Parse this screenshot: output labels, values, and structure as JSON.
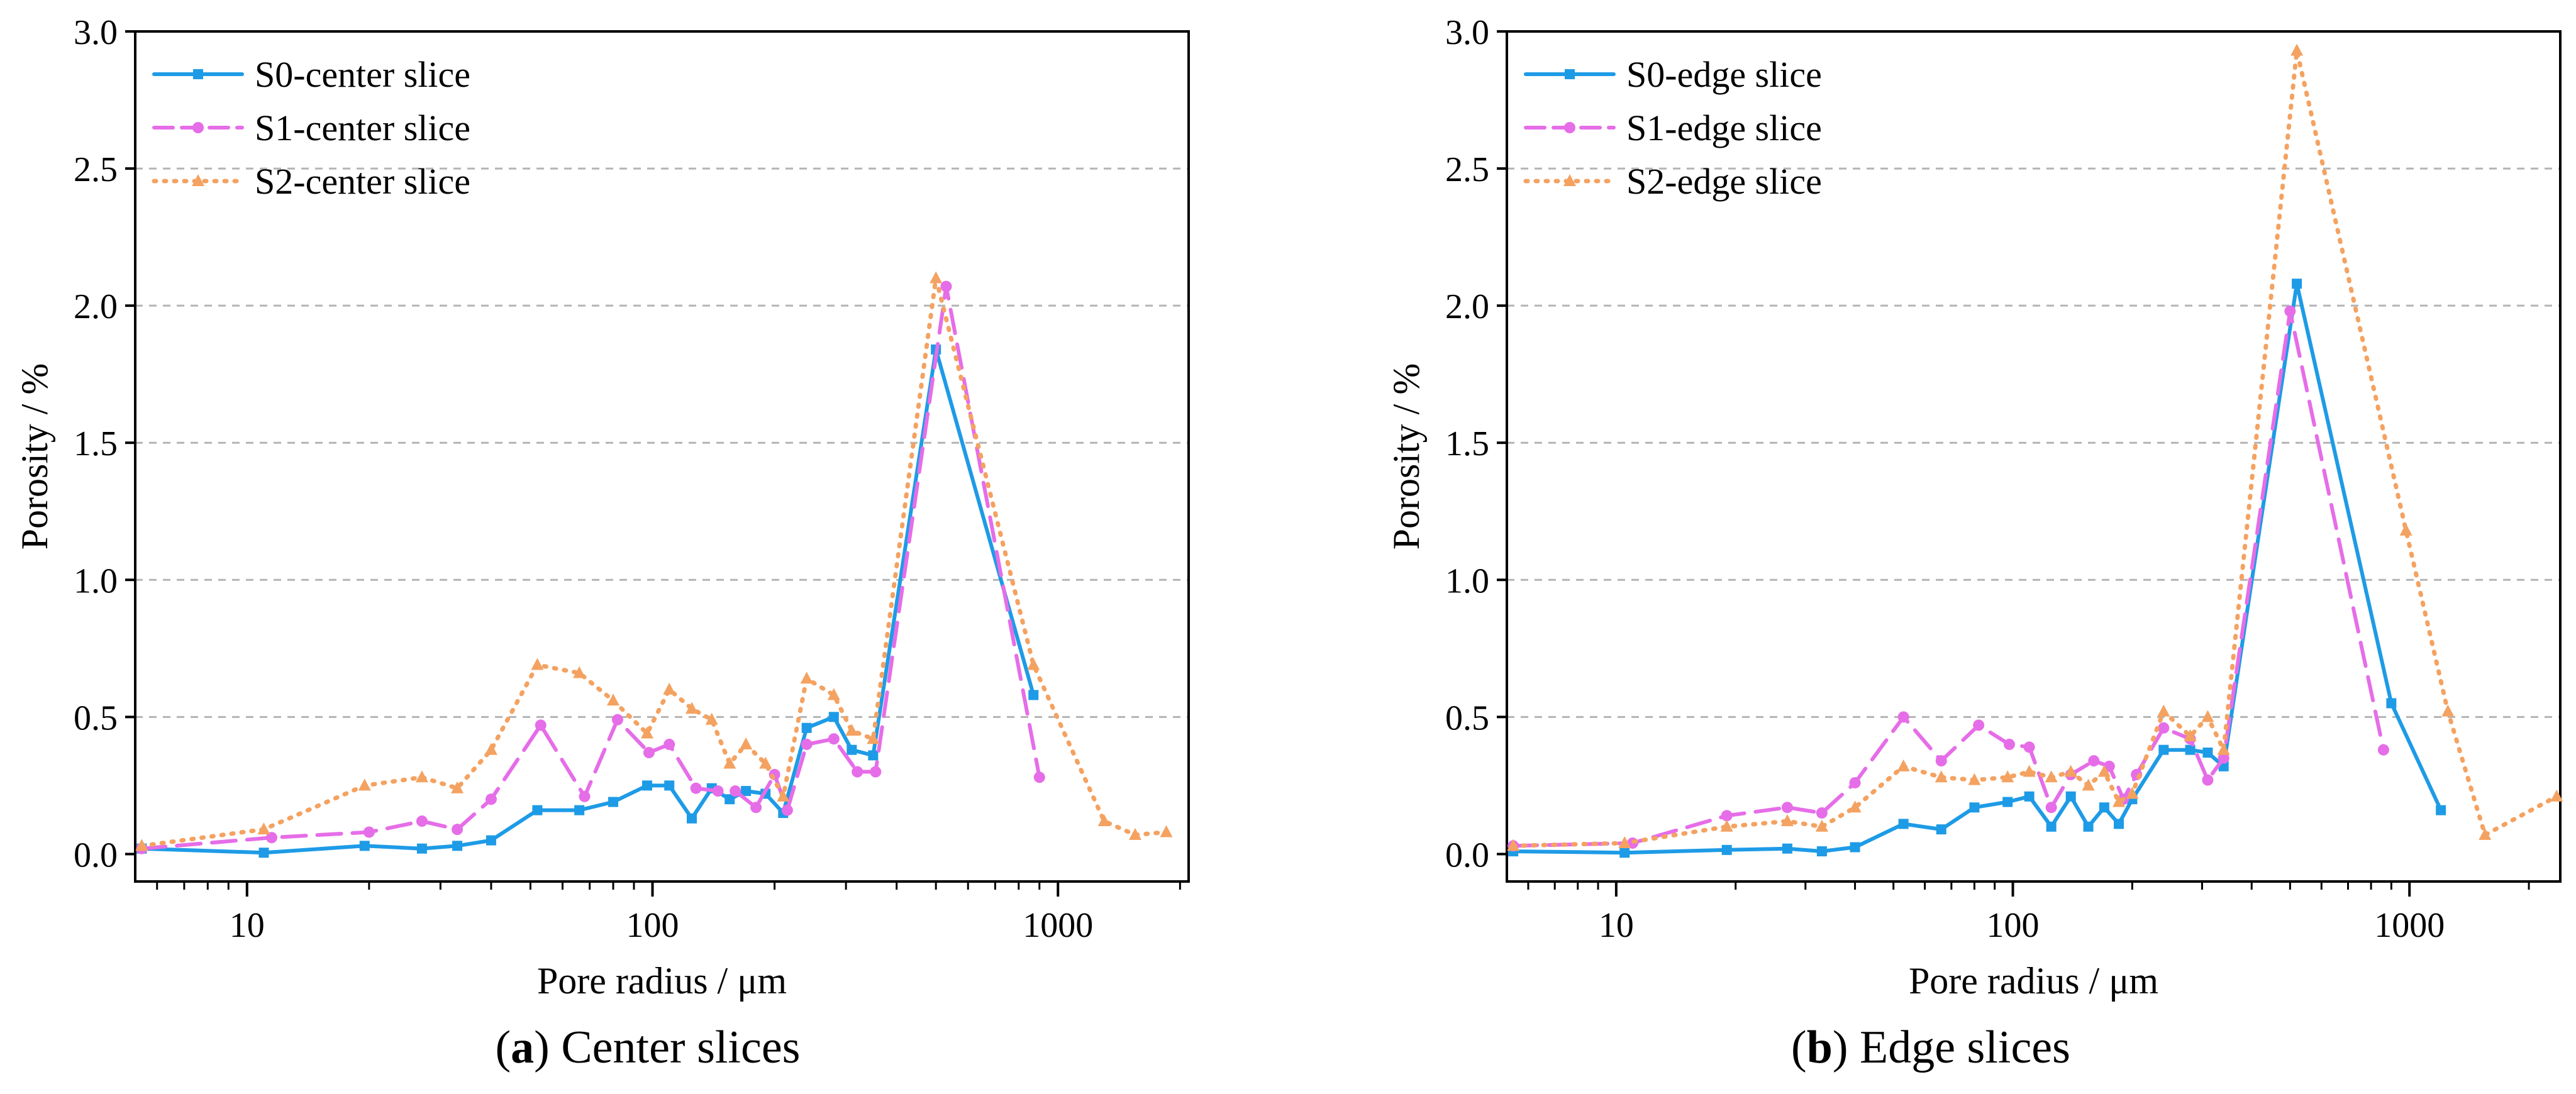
{
  "colors": {
    "s0": "#1e9be6",
    "s1": "#e66de8",
    "s2": "#f4a261",
    "grid": "#b4b4b4",
    "axis": "#000000"
  },
  "chart_data": [
    {
      "type": "line",
      "panel_label": "a",
      "caption": "Center slices",
      "xlabel": "Pore radius / μm",
      "ylabel": "Porosity / %",
      "xscale": "log",
      "xlim": [
        5.3,
        2100
      ],
      "ylim": [
        -0.1,
        3.0
      ],
      "xticks": [
        10,
        100,
        1000
      ],
      "xtick_labels": [
        "10",
        "100",
        "1000"
      ],
      "yticks": [
        0.0,
        0.5,
        1.0,
        1.5,
        2.0,
        2.5,
        3.0
      ],
      "ytick_labels": [
        "0.0",
        "0.5",
        "1.0",
        "1.5",
        "2.0",
        "2.5",
        "3.0"
      ],
      "grid": "horizontal dashed",
      "legend_position": "top-left",
      "series": [
        {
          "name": "S0-center slice",
          "style": "solid",
          "marker": "square",
          "color": "#1e9be6",
          "x": [
            5.5,
            11,
            19.5,
            27,
            33,
            40,
            52,
            66,
            80,
            97,
            110,
            125,
            140,
            155,
            170,
            190,
            210,
            240,
            280,
            310,
            350,
            500,
            870
          ],
          "y": [
            0.02,
            0.005,
            0.03,
            0.02,
            0.03,
            0.05,
            0.16,
            0.16,
            0.19,
            0.25,
            0.25,
            0.13,
            0.24,
            0.2,
            0.23,
            0.22,
            0.15,
            0.46,
            0.5,
            0.38,
            0.36,
            1.84,
            0.58
          ]
        },
        {
          "name": "S1-center slice",
          "style": "dashed",
          "marker": "circle",
          "color": "#e66de8",
          "x": [
            5.5,
            11.5,
            20,
            27,
            33,
            40,
            53,
            68,
            82,
            98,
            110,
            128,
            145,
            160,
            180,
            200,
            215,
            240,
            280,
            320,
            355,
            530,
            900
          ],
          "y": [
            0.02,
            0.06,
            0.08,
            0.12,
            0.09,
            0.2,
            0.47,
            0.21,
            0.49,
            0.37,
            0.4,
            0.24,
            0.23,
            0.23,
            0.17,
            0.29,
            0.16,
            0.4,
            0.42,
            0.3,
            0.3,
            2.07,
            0.28
          ]
        },
        {
          "name": "S2-center slice",
          "style": "dotted",
          "marker": "triangle",
          "color": "#f4a261",
          "x": [
            5.5,
            11,
            19.5,
            27,
            33,
            40,
            52,
            66,
            80,
            97,
            110,
            125,
            140,
            155,
            170,
            190,
            210,
            240,
            280,
            310,
            350,
            500,
            870,
            1300,
            1550,
            1850
          ],
          "y": [
            0.03,
            0.09,
            0.25,
            0.28,
            0.24,
            0.38,
            0.69,
            0.66,
            0.56,
            0.44,
            0.6,
            0.53,
            0.49,
            0.33,
            0.4,
            0.33,
            0.21,
            0.64,
            0.58,
            0.45,
            0.42,
            2.1,
            0.69,
            0.12,
            0.07,
            0.08
          ]
        }
      ]
    },
    {
      "type": "line",
      "panel_label": "b",
      "caption": "Edge slices",
      "xlabel": "Pore radius / μm",
      "ylabel": "Porosity / %",
      "xscale": "log",
      "xlim": [
        5.3,
        2400
      ],
      "ylim": [
        -0.1,
        3.0
      ],
      "xticks": [
        10,
        100,
        1000
      ],
      "xtick_labels": [
        "10",
        "100",
        "1000"
      ],
      "yticks": [
        0.0,
        0.5,
        1.0,
        1.5,
        2.0,
        2.5,
        3.0
      ],
      "ytick_labels": [
        "0.0",
        "0.5",
        "1.0",
        "1.5",
        "2.0",
        "2.5",
        "3.0"
      ],
      "grid": "horizontal dashed",
      "legend_position": "top-left",
      "series": [
        {
          "name": "S0-edge slice",
          "style": "solid",
          "marker": "square",
          "color": "#1e9be6",
          "x": [
            5.5,
            10.5,
            19,
            27,
            33,
            40,
            53,
            66,
            80,
            97,
            110,
            125,
            140,
            155,
            170,
            185,
            200,
            240,
            280,
            310,
            340,
            520,
            900,
            1200
          ],
          "y": [
            0.01,
            0.005,
            0.015,
            0.02,
            0.01,
            0.025,
            0.11,
            0.09,
            0.17,
            0.19,
            0.21,
            0.1,
            0.21,
            0.1,
            0.17,
            0.11,
            0.2,
            0.38,
            0.38,
            0.37,
            0.32,
            2.08,
            0.55,
            0.16
          ]
        },
        {
          "name": "S1-edge slice",
          "style": "dashed",
          "marker": "circle",
          "color": "#e66de8",
          "x": [
            5.5,
            11,
            19,
            27,
            33,
            40,
            53,
            66,
            82,
            98,
            110,
            125,
            140,
            160,
            175,
            190,
            205,
            240,
            280,
            310,
            340,
            500,
            860
          ],
          "y": [
            0.03,
            0.04,
            0.14,
            0.17,
            0.15,
            0.26,
            0.5,
            0.34,
            0.47,
            0.4,
            0.39,
            0.17,
            0.29,
            0.34,
            0.32,
            0.2,
            0.29,
            0.46,
            0.42,
            0.27,
            0.35,
            1.98,
            0.38
          ]
        },
        {
          "name": "S2-edge slice",
          "style": "dotted",
          "marker": "triangle",
          "color": "#f4a261",
          "x": [
            5.5,
            10.5,
            19,
            27,
            33,
            40,
            53,
            66,
            80,
            97,
            110,
            125,
            140,
            155,
            170,
            185,
            200,
            240,
            280,
            310,
            340,
            520,
            980,
            1250,
            1550,
            2350
          ],
          "y": [
            0.03,
            0.04,
            0.1,
            0.12,
            0.1,
            0.17,
            0.32,
            0.28,
            0.27,
            0.28,
            0.3,
            0.28,
            0.3,
            0.25,
            0.3,
            0.19,
            0.22,
            0.52,
            0.43,
            0.5,
            0.38,
            2.93,
            1.18,
            0.52,
            0.07,
            0.21
          ]
        }
      ]
    }
  ]
}
